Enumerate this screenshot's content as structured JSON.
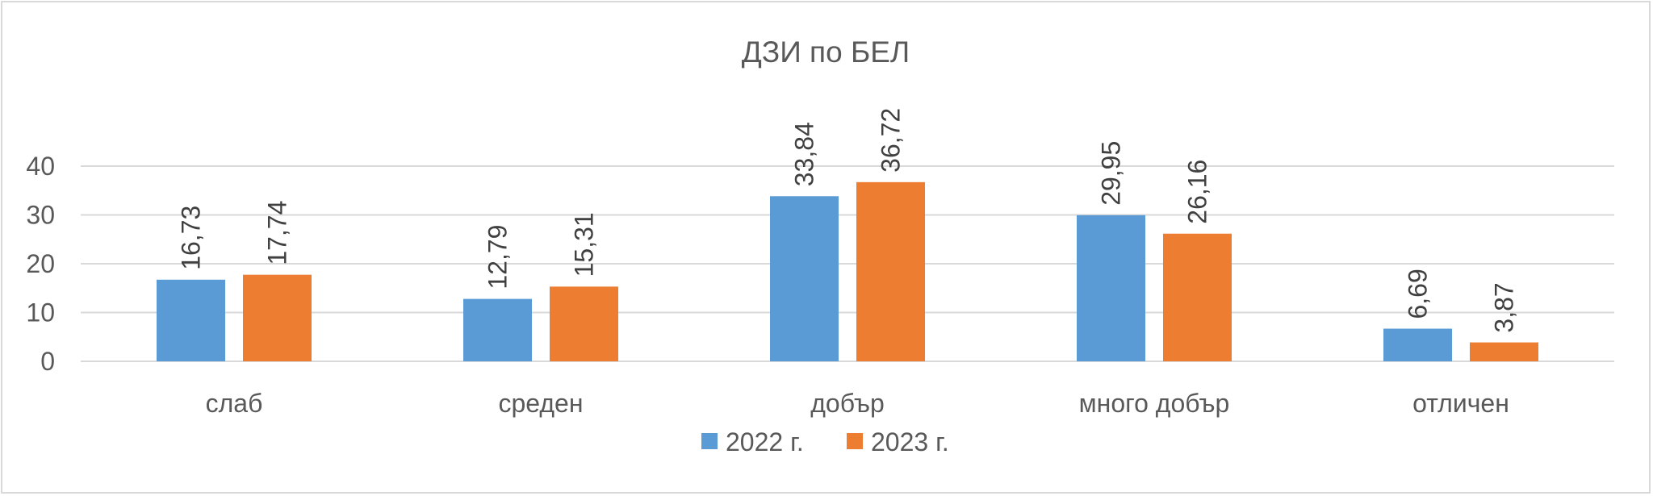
{
  "chart_data": {
    "type": "bar",
    "title": "ДЗИ по БЕЛ",
    "categories": [
      "слаб",
      "среден",
      "добър",
      "много добър",
      "отличен"
    ],
    "series": [
      {
        "name": "2022 г.",
        "color": "#5b9bd5",
        "values": [
          16.73,
          12.79,
          33.84,
          29.95,
          6.69
        ],
        "labels": [
          "16,73",
          "12,79",
          "33,84",
          "29,95",
          "6,69"
        ]
      },
      {
        "name": "2023 г.",
        "color": "#ed7d31",
        "values": [
          17.74,
          15.31,
          36.72,
          26.16,
          3.87
        ],
        "labels": [
          "17,74",
          "15,31",
          "36,72",
          "26,16",
          "3,87"
        ]
      }
    ],
    "yticks": [
      "0",
      "10",
      "20",
      "30",
      "40"
    ],
    "ylim": [
      0,
      40
    ],
    "grid": true,
    "legend_position": "bottom"
  }
}
